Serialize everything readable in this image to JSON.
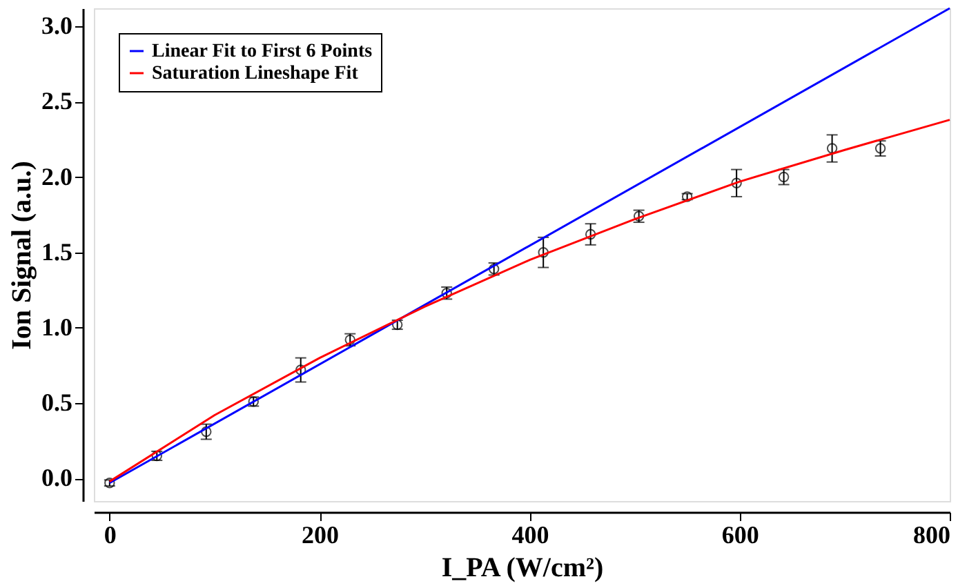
{
  "chart_data": {
    "type": "scatter",
    "xlabel": "I_PA (W/cm²)",
    "ylabel": "Ion Signal (a.u.)",
    "xlim": [
      -15,
      800
    ],
    "ylim": [
      -0.15,
      3.12
    ],
    "xticks": [
      0,
      200,
      400,
      600,
      800
    ],
    "yticks": [
      {
        "value": 0,
        "label": "0.0"
      },
      0.5,
      {
        "value": 1,
        "label": "1.0"
      },
      1.5,
      {
        "value": 2,
        "label": "2.0"
      },
      2.5,
      {
        "value": 3,
        "label": "3.0"
      }
    ],
    "grid": false,
    "legend": "top left",
    "series": [
      {
        "marker": "circle",
        "color": "#000000",
        "x": [
          0,
          45,
          92,
          137,
          182,
          229,
          274,
          321,
          366,
          413,
          458,
          504,
          550,
          597,
          642,
          688,
          734
        ],
        "values": [
          -0.03,
          0.15,
          0.31,
          0.51,
          0.72,
          0.92,
          1.02,
          1.23,
          1.39,
          1.5,
          1.62,
          1.74,
          1.87,
          1.96,
          2.0,
          2.19,
          2.19
        ],
        "errors": [
          0.02,
          0.03,
          0.05,
          0.03,
          0.08,
          0.04,
          0.03,
          0.04,
          0.04,
          0.1,
          0.07,
          0.04,
          0.02,
          0.09,
          0.05,
          0.09,
          0.05
        ]
      },
      {
        "type": "line",
        "name": "Linear Fit to First 6 Points",
        "color": "#0000ff",
        "x": [
          0,
          800
        ],
        "values": [
          -0.03,
          3.12
        ]
      },
      {
        "type": "line",
        "name": "Saturation Lineshape Fit",
        "color": "#ff0000",
        "x": [
          0,
          100,
          200,
          300,
          400,
          500,
          600,
          700,
          800
        ],
        "values": [
          -0.02,
          0.42,
          0.8,
          1.14,
          1.45,
          1.72,
          1.97,
          2.18,
          2.38
        ]
      }
    ]
  }
}
